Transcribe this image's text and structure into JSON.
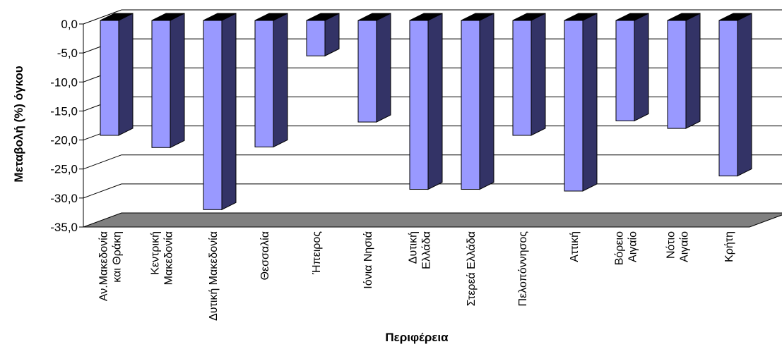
{
  "chart_data": {
    "type": "bar",
    "xlabel": "Περιφέρεια",
    "ylabel": "Μεταβολή (%) όγκου",
    "ylim": [
      -35,
      0
    ],
    "yticks": [
      "0,0",
      "-5,0",
      "-10,0",
      "-15,0",
      "-20,0",
      "-25,0",
      "-30,0",
      "-35,0"
    ],
    "grid": true,
    "style": "3d-column",
    "colors": {
      "front": "#9999ff",
      "top": "#000000",
      "side": "#333366",
      "floor": "#808080"
    },
    "categories": [
      [
        "Αν.Μακεδονία",
        "και Θράκη"
      ],
      [
        "Κεντρική",
        "Μακεδονία"
      ],
      [
        "Δυτική Μακεδονία"
      ],
      [
        "Θεσσαλία"
      ],
      [
        "Ήπειρος"
      ],
      [
        "Ιόνια Νησιά"
      ],
      [
        "Δυτική",
        "Ελλάδα"
      ],
      [
        "Στερεά Ελλάδα"
      ],
      [
        "Πελοπόννησος"
      ],
      [
        "Αττική"
      ],
      [
        "Βόρειο",
        "Αιγαίο"
      ],
      [
        "Νότιο",
        "Αιγαίο"
      ],
      [
        "Κρήτη"
      ]
    ],
    "values": [
      -19.2,
      -21.3,
      -32.0,
      -21.2,
      -5.5,
      -16.9,
      -28.5,
      -28.5,
      -19.2,
      -28.8,
      -16.7,
      -18.0,
      -26.2
    ]
  }
}
